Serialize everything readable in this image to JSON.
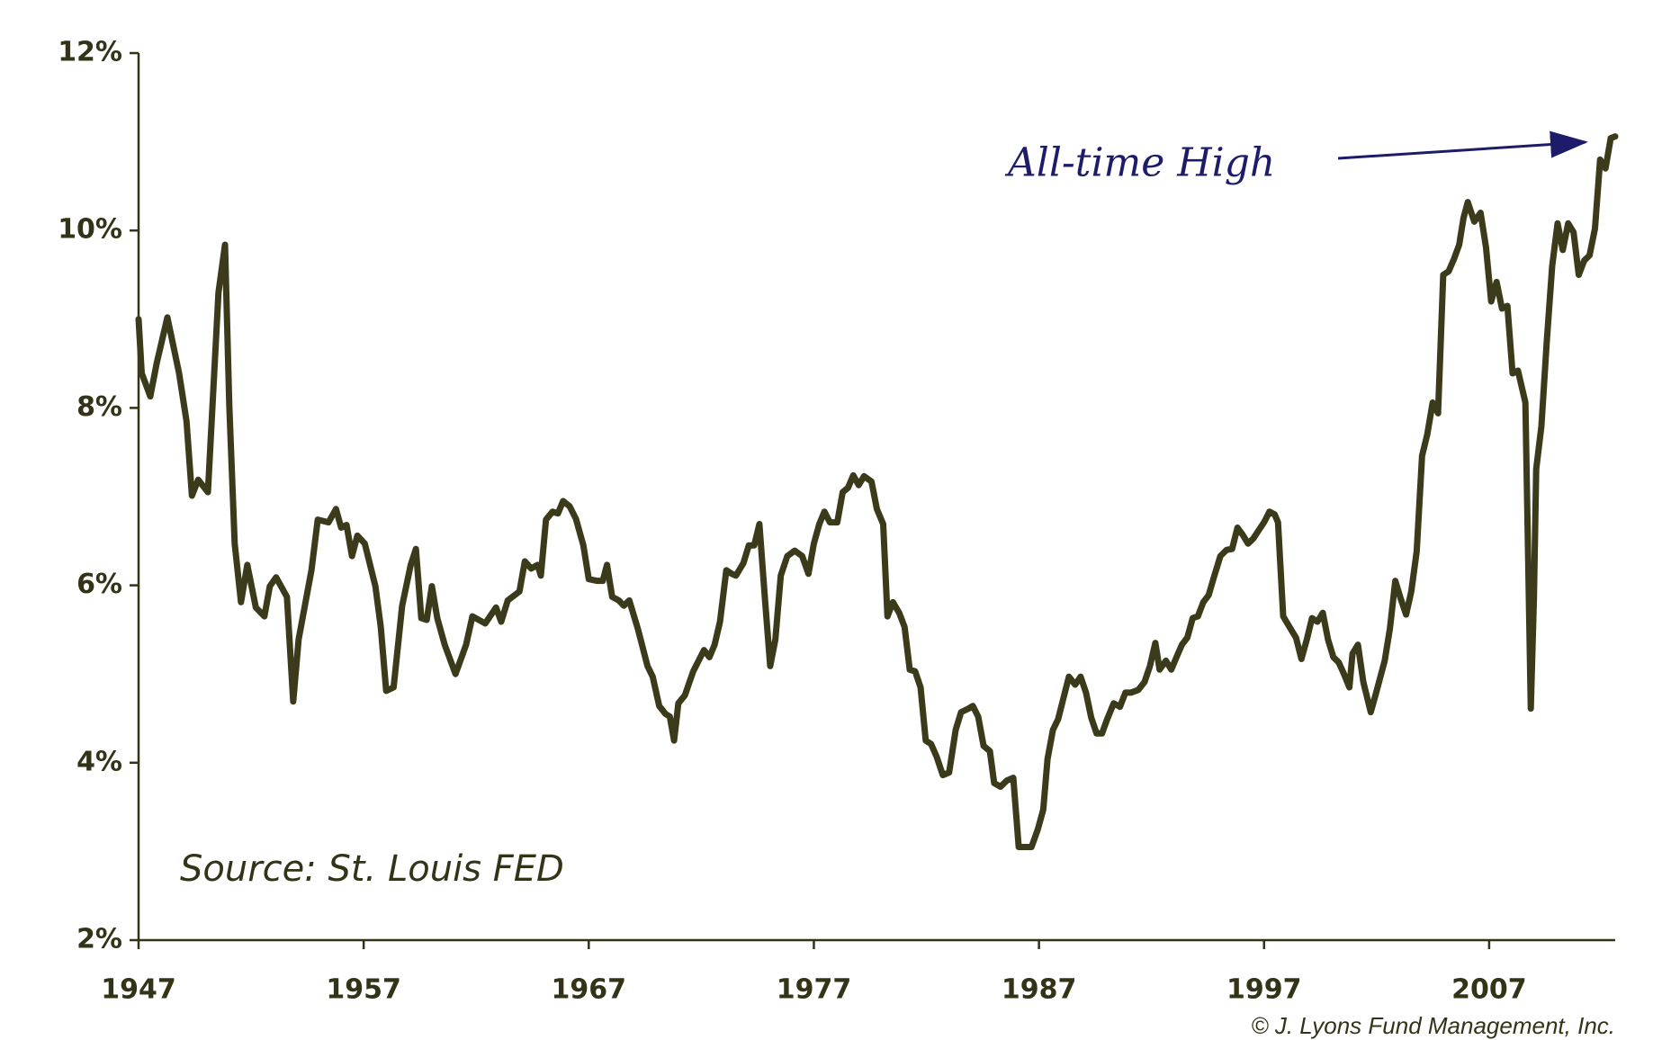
{
  "chart_data": {
    "type": "line",
    "annotation": "All-time High",
    "source": "Source: St. Louis FED",
    "credit": "© J. Lyons Fund Management, Inc.",
    "color": "#3b3b1c",
    "xlim": [
      1947,
      2012.6
    ],
    "xticks": [
      1947,
      1957,
      1967,
      1977,
      1987,
      1997,
      2007
    ],
    "ylim": [
      2,
      12
    ],
    "yticks": [
      {
        "value": 2,
        "label": "2%"
      },
      {
        "value": 4,
        "label": "4%"
      },
      {
        "value": 6,
        "label": "6%"
      },
      {
        "value": 8,
        "label": "8%"
      },
      {
        "value": 10,
        "label": "10%"
      },
      {
        "value": 12,
        "label": "12%"
      }
    ],
    "x": [
      1947.0,
      1947.14,
      1947.52,
      1947.81,
      1948.28,
      1948.8,
      1949.13,
      1949.37,
      1949.65,
      1950.08,
      1950.55,
      1950.84,
      1951.03,
      1951.27,
      1951.55,
      1951.83,
      1952.21,
      1952.59,
      1952.83,
      1953.11,
      1953.59,
      1953.87,
      1954.11,
      1954.68,
      1954.96,
      1955.44,
      1955.77,
      1956.0,
      1956.24,
      1956.48,
      1956.72,
      1957.05,
      1957.52,
      1957.76,
      1958.0,
      1958.33,
      1958.71,
      1959.09,
      1959.32,
      1959.56,
      1959.8,
      1960.03,
      1960.27,
      1960.6,
      1961.08,
      1961.55,
      1961.83,
      1962.4,
      1962.88,
      1963.11,
      1963.4,
      1963.92,
      1964.16,
      1964.44,
      1964.73,
      1964.87,
      1965.1,
      1965.39,
      1965.63,
      1965.86,
      1966.15,
      1966.43,
      1966.76,
      1967.0,
      1967.38,
      1967.62,
      1967.81,
      1968.04,
      1968.33,
      1968.56,
      1968.8,
      1969.18,
      1969.61,
      1969.84,
      1970.13,
      1970.41,
      1970.6,
      1970.79,
      1970.98,
      1971.27,
      1971.64,
      1972.12,
      1972.36,
      1972.59,
      1972.83,
      1973.11,
      1973.35,
      1973.54,
      1973.87,
      1974.11,
      1974.35,
      1974.58,
      1974.82,
      1975.06,
      1975.29,
      1975.53,
      1975.82,
      1976.15,
      1976.48,
      1976.76,
      1977.0,
      1977.24,
      1977.47,
      1977.71,
      1978.04,
      1978.28,
      1978.52,
      1978.75,
      1978.99,
      1979.23,
      1979.56,
      1979.8,
      1980.08,
      1980.27,
      1980.51,
      1980.79,
      1981.03,
      1981.26,
      1981.5,
      1981.74,
      1981.97,
      1982.21,
      1982.45,
      1982.73,
      1983.01,
      1983.3,
      1983.54,
      1983.87,
      1984.06,
      1984.3,
      1984.54,
      1984.82,
      1985.01,
      1985.29,
      1985.58,
      1985.86,
      1986.1,
      1986.43,
      1986.67,
      1986.95,
      1987.19,
      1987.38,
      1987.62,
      1987.85,
      1988.09,
      1988.33,
      1988.61,
      1988.85,
      1989.09,
      1989.32,
      1989.56,
      1989.8,
      1990.03,
      1990.32,
      1990.6,
      1990.84,
      1991.08,
      1991.41,
      1991.69,
      1991.93,
      1992.17,
      1992.36,
      1992.64,
      1992.88,
      1993.11,
      1993.35,
      1993.59,
      1993.83,
      1994.06,
      1994.3,
      1994.54,
      1994.77,
      1995.06,
      1995.34,
      1995.58,
      1995.82,
      1996.05,
      1996.29,
      1996.53,
      1996.76,
      1997.0,
      1997.24,
      1997.47,
      1997.62,
      1997.85,
      1998.18,
      1998.42,
      1998.66,
      1998.9,
      1999.13,
      1999.37,
      1999.61,
      1999.84,
      2000.08,
      2000.32,
      2000.55,
      2000.79,
      2000.93,
      2001.17,
      2001.41,
      2001.74,
      2001.98,
      2002.36,
      2002.59,
      2002.83,
      2003.07,
      2003.31,
      2003.54,
      2003.78,
      2004.02,
      2004.25,
      2004.49,
      2004.73,
      2004.96,
      2005.2,
      2005.44,
      2005.67,
      2005.86,
      2006.05,
      2006.34,
      2006.62,
      2006.86,
      2007.09,
      2007.33,
      2007.57,
      2007.81,
      2008.04,
      2008.28,
      2008.61,
      2008.85,
      2008.99,
      2009.09,
      2009.32,
      2009.56,
      2009.8,
      2010.04,
      2010.27,
      2010.51,
      2010.75,
      2010.98,
      2011.22,
      2011.46,
      2011.7,
      2011.93,
      2012.17,
      2012.4,
      2012.6
    ],
    "values": [
      9.0,
      8.39,
      8.13,
      8.51,
      9.02,
      8.39,
      7.85,
      7.01,
      7.19,
      7.05,
      9.3,
      9.84,
      8.03,
      6.47,
      5.81,
      6.23,
      5.75,
      5.65,
      5.99,
      6.09,
      5.87,
      4.69,
      5.39,
      6.17,
      6.74,
      6.71,
      6.86,
      6.65,
      6.68,
      6.33,
      6.56,
      6.47,
      5.99,
      5.53,
      4.81,
      4.85,
      5.77,
      6.23,
      6.41,
      5.63,
      5.61,
      5.99,
      5.63,
      5.33,
      5.0,
      5.33,
      5.65,
      5.57,
      5.75,
      5.59,
      5.83,
      5.93,
      6.27,
      6.19,
      6.23,
      6.11,
      6.74,
      6.83,
      6.81,
      6.95,
      6.89,
      6.75,
      6.45,
      6.07,
      6.05,
      6.05,
      6.23,
      5.87,
      5.83,
      5.77,
      5.83,
      5.51,
      5.09,
      4.97,
      4.64,
      4.55,
      4.52,
      4.25,
      4.67,
      4.76,
      5.03,
      5.27,
      5.19,
      5.33,
      5.59,
      6.17,
      6.13,
      6.11,
      6.25,
      6.45,
      6.45,
      6.69,
      5.87,
      5.09,
      5.39,
      6.11,
      6.33,
      6.39,
      6.33,
      6.13,
      6.47,
      6.69,
      6.83,
      6.71,
      6.71,
      7.05,
      7.1,
      7.24,
      7.13,
      7.23,
      7.17,
      6.86,
      6.69,
      5.65,
      5.81,
      5.69,
      5.53,
      5.05,
      5.03,
      4.85,
      4.25,
      4.21,
      4.07,
      3.86,
      3.89,
      4.37,
      4.57,
      4.61,
      4.64,
      4.52,
      4.19,
      4.13,
      3.77,
      3.73,
      3.8,
      3.83,
      3.05,
      3.05,
      3.05,
      3.25,
      3.47,
      4.04,
      4.37,
      4.49,
      4.73,
      4.97,
      4.88,
      4.97,
      4.79,
      4.51,
      4.33,
      4.33,
      4.49,
      4.67,
      4.63,
      4.79,
      4.79,
      4.82,
      4.91,
      5.09,
      5.35,
      5.05,
      5.15,
      5.05,
      5.19,
      5.33,
      5.41,
      5.63,
      5.65,
      5.81,
      5.89,
      6.09,
      6.33,
      6.4,
      6.41,
      6.65,
      6.57,
      6.47,
      6.53,
      6.62,
      6.71,
      6.83,
      6.8,
      6.71,
      5.65,
      5.51,
      5.41,
      5.17,
      5.39,
      5.63,
      5.59,
      5.69,
      5.39,
      5.19,
      5.13,
      5.0,
      4.85,
      5.23,
      5.33,
      4.91,
      4.57,
      4.79,
      5.15,
      5.51,
      6.05,
      5.85,
      5.67,
      5.93,
      6.38,
      7.46,
      7.7,
      8.06,
      7.94,
      9.5,
      9.54,
      9.68,
      9.84,
      10.14,
      10.32,
      10.1,
      10.2,
      9.81,
      9.2,
      9.42,
      9.12,
      9.15,
      8.39,
      8.42,
      8.06,
      4.61,
      5.87,
      7.31,
      7.79,
      8.75,
      9.6,
      10.08,
      9.78,
      10.08,
      9.98,
      9.5,
      9.66,
      9.72,
      10.02,
      10.8,
      10.7,
      11.04,
      11.06
    ]
  }
}
